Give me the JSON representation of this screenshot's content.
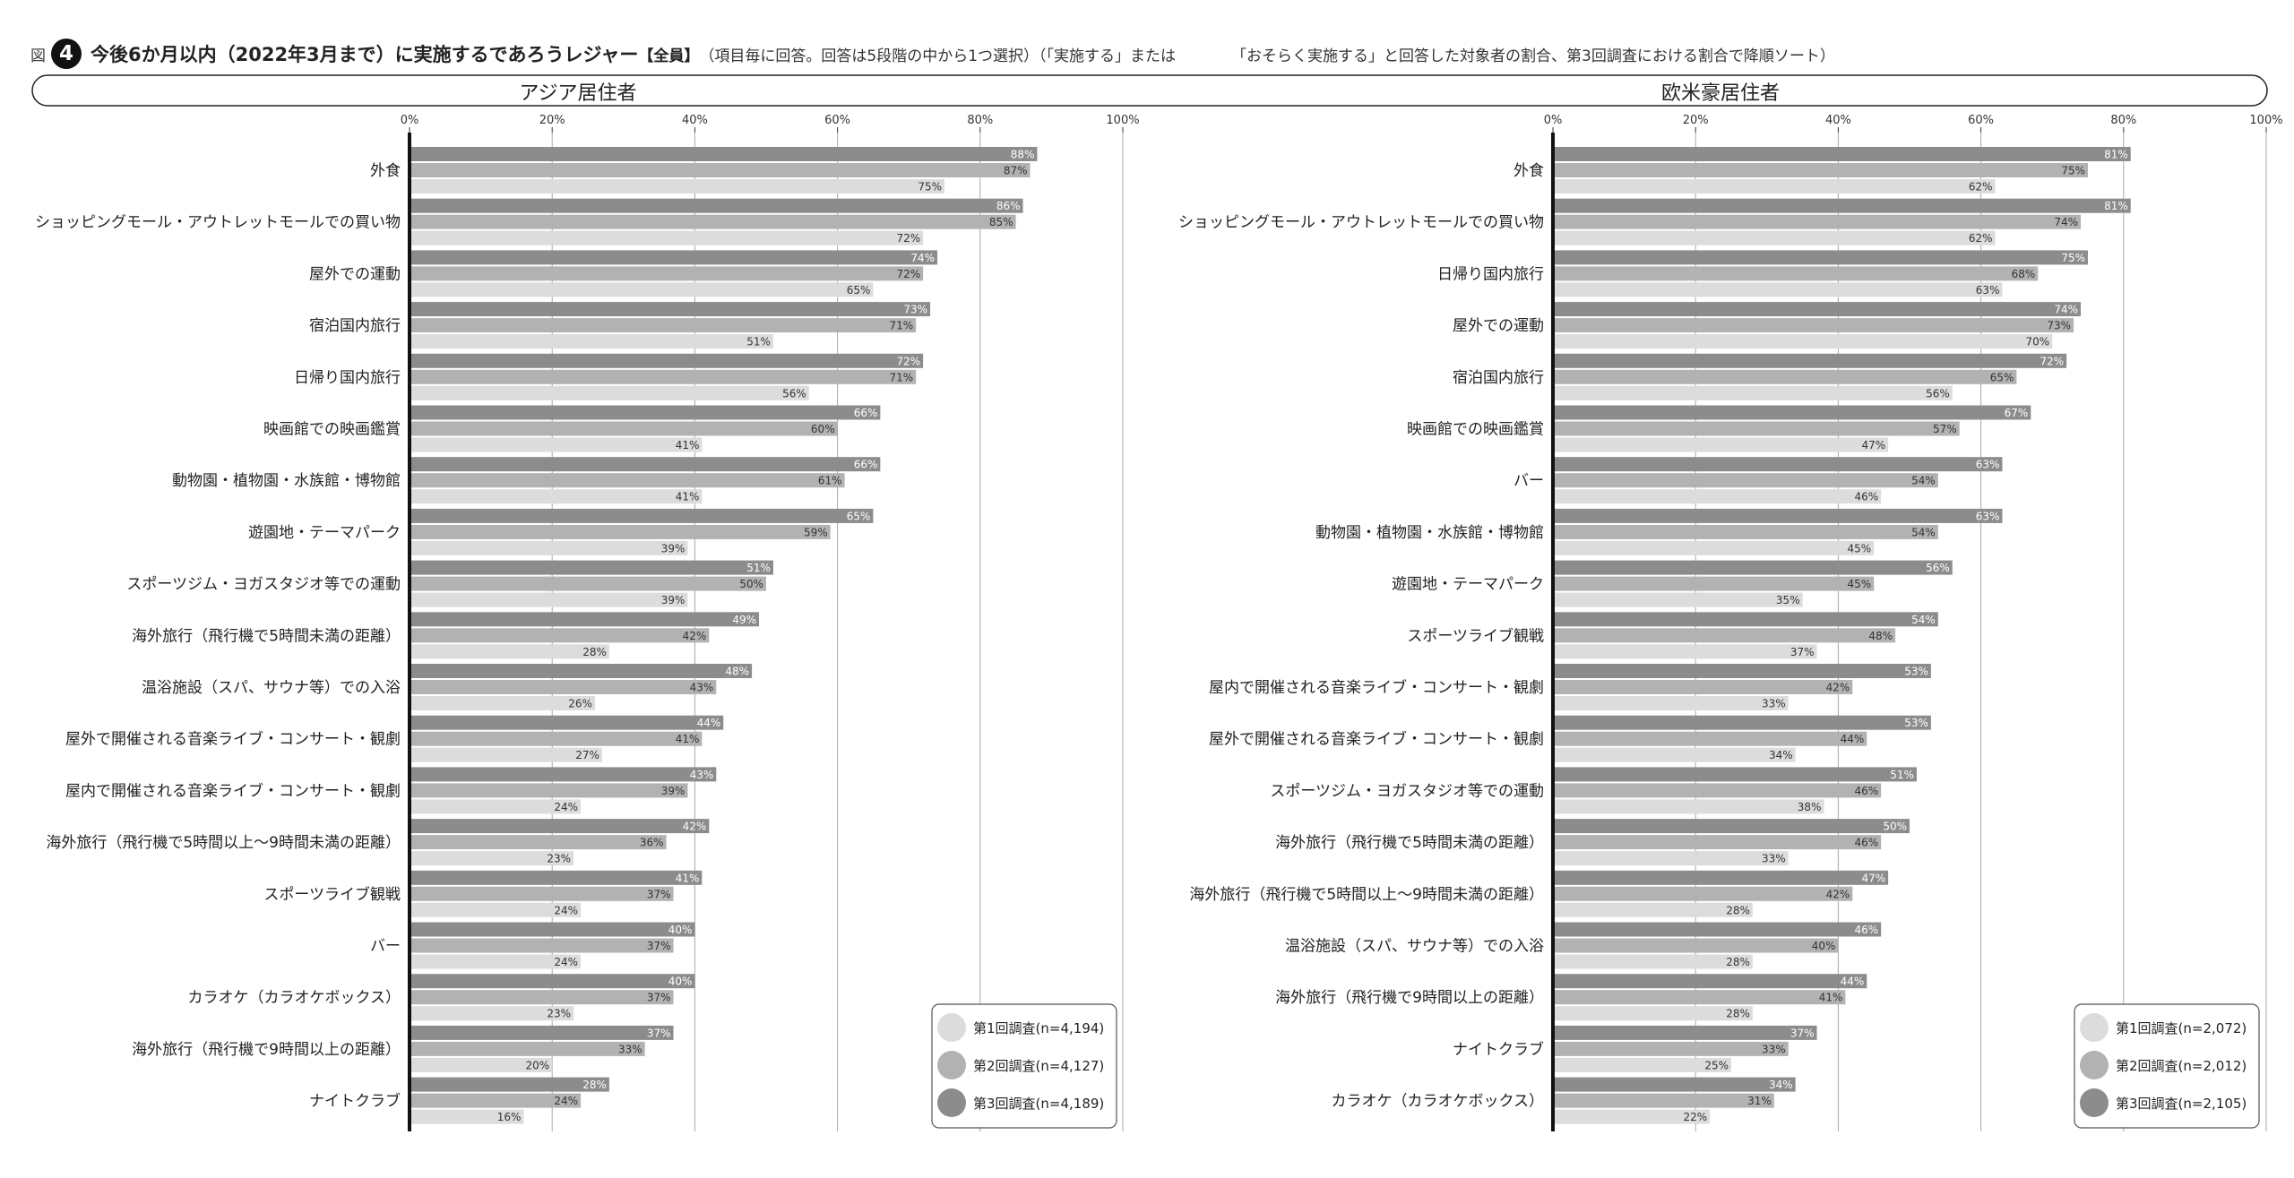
{
  "figure": {
    "prefix": "図",
    "number": "4",
    "title": "今後6か月以内（2022年3月まで）に実施するであろうレジャー",
    "tag": "【全員】",
    "note_part1": "（項目毎に回答。回答は5段階の中から1つ選択）（「実施する」または",
    "note_part2": "「おそらく実施する」と回答した対象者の割合、第3回調査における割合で降順ソート）"
  },
  "colors": {
    "survey1": "#dcdcdc",
    "survey2": "#b2b2b2",
    "survey3": "#8c8c8c",
    "axis": "#111111",
    "grid": "#a8a8a8"
  },
  "chart_data": [
    {
      "type": "bar",
      "orientation": "horizontal",
      "title": "アジア居住者",
      "xlim": [
        0,
        100
      ],
      "xticks": [
        "0%",
        "20%",
        "40%",
        "60%",
        "80%",
        "100%"
      ],
      "categories": [
        "外食",
        "ショッピングモール・アウトレットモールでの買い物",
        "屋外での運動",
        "宿泊国内旅行",
        "日帰り国内旅行",
        "映画館での映画鑑賞",
        "動物園・植物園・水族館・博物館",
        "遊園地・テーマパーク",
        "スポーツジム・ヨガスタジオ等での運動",
        "海外旅行（飛行機で5時間未満の距離）",
        "温浴施設（スパ、サウナ等）での入浴",
        "屋外で開催される音楽ライブ・コンサート・観劇",
        "屋内で開催される音楽ライブ・コンサート・観劇",
        "海外旅行（飛行機で5時間以上〜9時間未満の距離）",
        "スポーツライブ観戦",
        "バー",
        "カラオケ（カラオケボックス）",
        "海外旅行（飛行機で9時間以上の距離）",
        "ナイトクラブ"
      ],
      "series": [
        {
          "name": "第3回調査(n=4,189)",
          "values": [
            88,
            86,
            74,
            73,
            72,
            66,
            66,
            65,
            51,
            49,
            48,
            44,
            43,
            42,
            41,
            40,
            40,
            37,
            28
          ]
        },
        {
          "name": "第2回調査(n=4,127)",
          "values": [
            87,
            85,
            72,
            71,
            71,
            60,
            61,
            59,
            50,
            42,
            43,
            41,
            39,
            36,
            37,
            37,
            37,
            33,
            24
          ]
        },
        {
          "name": "第1回調査(n=4,194)",
          "values": [
            75,
            72,
            65,
            51,
            56,
            41,
            41,
            39,
            39,
            28,
            26,
            27,
            24,
            23,
            24,
            24,
            23,
            20,
            16
          ]
        }
      ],
      "legend": [
        "第1回調査(n=4,194)",
        "第2回調査(n=4,127)",
        "第3回調査(n=4,189)"
      ],
      "legend_position": "bottom-right"
    },
    {
      "type": "bar",
      "orientation": "horizontal",
      "title": "欧米豪居住者",
      "xlim": [
        0,
        100
      ],
      "xticks": [
        "0%",
        "20%",
        "40%",
        "60%",
        "80%",
        "100%"
      ],
      "categories": [
        "外食",
        "ショッピングモール・アウトレットモールでの買い物",
        "日帰り国内旅行",
        "屋外での運動",
        "宿泊国内旅行",
        "映画館での映画鑑賞",
        "バー",
        "動物園・植物園・水族館・博物館",
        "遊園地・テーマパーク",
        "スポーツライブ観戦",
        "屋内で開催される音楽ライブ・コンサート・観劇",
        "屋外で開催される音楽ライブ・コンサート・観劇",
        "スポーツジム・ヨガスタジオ等での運動",
        "海外旅行（飛行機で5時間未満の距離）",
        "海外旅行（飛行機で5時間以上〜9時間未満の距離）",
        "温浴施設（スパ、サウナ等）での入浴",
        "海外旅行（飛行機で9時間以上の距離）",
        "ナイトクラブ",
        "カラオケ（カラオケボックス）"
      ],
      "series": [
        {
          "name": "第3回調査(n=2,105)",
          "values": [
            81,
            81,
            75,
            74,
            72,
            67,
            63,
            63,
            56,
            54,
            53,
            53,
            51,
            50,
            47,
            46,
            44,
            37,
            34
          ]
        },
        {
          "name": "第2回調査(n=2,012)",
          "values": [
            75,
            74,
            68,
            73,
            65,
            57,
            54,
            54,
            45,
            48,
            42,
            44,
            46,
            46,
            42,
            40,
            41,
            33,
            31
          ]
        },
        {
          "name": "第1回調査(n=2,072)",
          "values": [
            62,
            62,
            63,
            70,
            56,
            47,
            46,
            45,
            35,
            37,
            33,
            34,
            38,
            33,
            28,
            28,
            28,
            25,
            22
          ]
        }
      ],
      "legend": [
        "第1回調査(n=2,072)",
        "第2回調査(n=2,012)",
        "第3回調査(n=2,105)"
      ],
      "legend_position": "bottom-right"
    }
  ]
}
